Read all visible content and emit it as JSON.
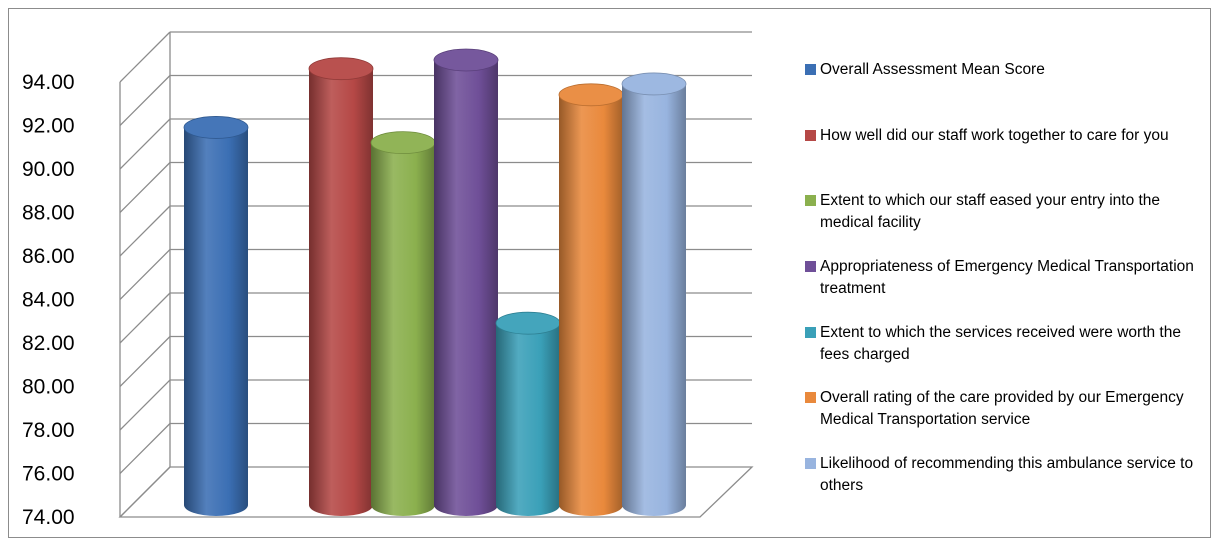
{
  "chart_data": {
    "type": "bar",
    "title": "",
    "xlabel": "",
    "ylabel": "",
    "ylim": [
      74,
      94
    ],
    "y_ticks": [
      "74.00",
      "76.00",
      "78.00",
      "80.00",
      "82.00",
      "84.00",
      "86.00",
      "88.00",
      "90.00",
      "92.00",
      "94.00"
    ],
    "grid": true,
    "legend_position": "right",
    "style": "3d-cylinder",
    "series": [
      {
        "name": "Overall Assessment Mean Score",
        "value": 90.9,
        "color": "#3b6fb4"
      },
      {
        "name": "How well did our staff work together to care for you",
        "value": 93.6,
        "color": "#b54846"
      },
      {
        "name": "Extent to which our staff eased your entry into the medical facility",
        "value": 90.2,
        "color": "#8bb04e"
      },
      {
        "name": "Appropriateness of Emergency Medical Transportation treatment",
        "value": 94.0,
        "color": "#6f4f98"
      },
      {
        "name": "Extent to which the services received were worth the fees charged",
        "value": 81.9,
        "color": "#3aa0b8"
      },
      {
        "name": "Overall rating of the care provided by our Emergency Medical Transportation service",
        "value": 92.4,
        "color": "#e9893c"
      },
      {
        "name": "Likelihood of recommending this ambulance service to others",
        "value": 92.9,
        "color": "#98b4df"
      }
    ]
  }
}
